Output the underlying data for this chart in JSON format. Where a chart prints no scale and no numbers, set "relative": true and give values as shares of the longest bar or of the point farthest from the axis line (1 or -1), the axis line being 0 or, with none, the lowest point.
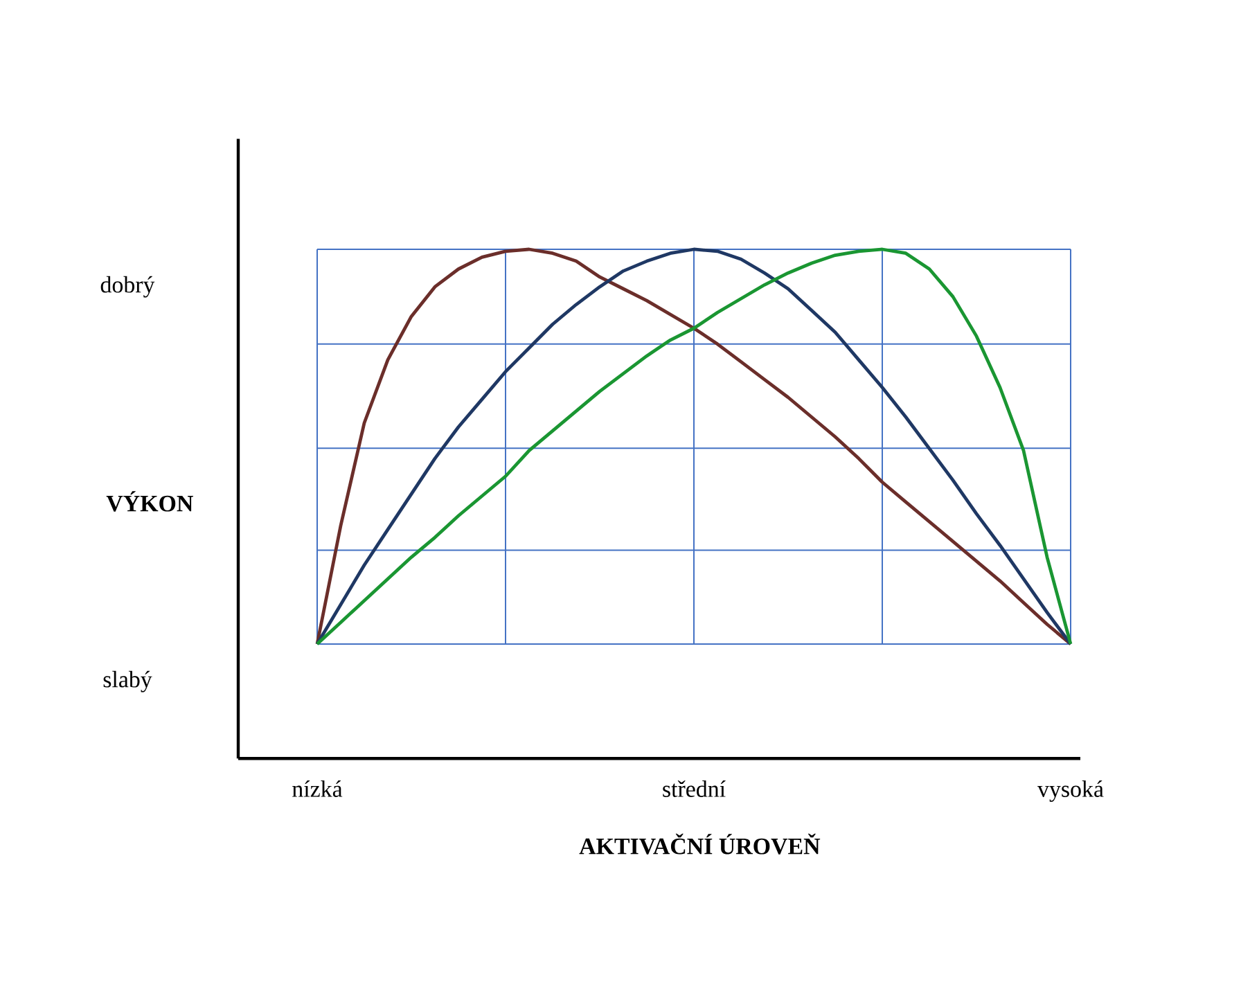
{
  "chart_data": {
    "type": "line",
    "relative": true,
    "xlabel": "AKTIVAČNÍ ÚROVEŇ",
    "ylabel": "VÝKON",
    "annotations": [
      "dobrý",
      "slabý"
    ],
    "categories": [
      "nízká",
      null,
      null,
      null,
      null,
      null,
      null,
      null,
      null,
      null,
      null,
      null,
      null,
      null,
      null,
      null,
      "střední",
      null,
      null,
      null,
      null,
      null,
      null,
      null,
      null,
      null,
      null,
      null,
      null,
      null,
      null,
      null,
      "vysoká"
    ],
    "grid": true,
    "marker": "none",
    "line_style": "solid",
    "series": [
      {
        "color": "#6b2e2a",
        "values": [
          0,
          0.3,
          0.56,
          0.72,
          0.83,
          0.905,
          0.95,
          0.98,
          0.995,
          1.0,
          0.99,
          0.97,
          0.93,
          0.9,
          0.87,
          0.835,
          0.8,
          0.76,
          0.715,
          0.67,
          0.625,
          0.575,
          0.525,
          0.47,
          0.41,
          0.36,
          0.31,
          0.26,
          0.21,
          0.16,
          0.105,
          0.05,
          0
        ]
      },
      {
        "color": "#1f3864",
        "values": [
          0,
          0.1,
          0.2,
          0.29,
          0.38,
          0.47,
          0.55,
          0.62,
          0.69,
          0.75,
          0.81,
          0.86,
          0.905,
          0.945,
          0.97,
          0.99,
          1.0,
          0.995,
          0.975,
          0.94,
          0.9,
          0.845,
          0.79,
          0.72,
          0.65,
          0.575,
          0.495,
          0.415,
          0.33,
          0.25,
          0.165,
          0.08,
          0
        ]
      },
      {
        "color": "#1a9632",
        "values": [
          0,
          0.055,
          0.11,
          0.165,
          0.22,
          0.27,
          0.325,
          0.375,
          0.425,
          0.49,
          0.54,
          0.59,
          0.64,
          0.685,
          0.73,
          0.77,
          0.8,
          0.84,
          0.875,
          0.91,
          0.94,
          0.965,
          0.985,
          0.995,
          1.0,
          0.99,
          0.95,
          0.88,
          0.78,
          0.65,
          0.49,
          0.22,
          0
        ]
      }
    ]
  }
}
